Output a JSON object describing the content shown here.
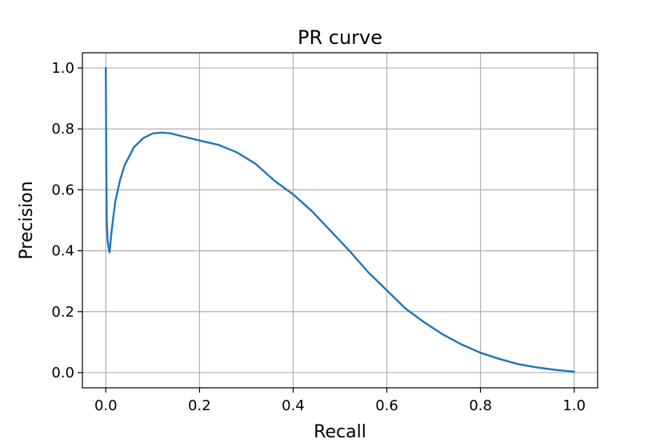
{
  "chart_data": {
    "type": "line",
    "title": "PR curve",
    "xlabel": "Recall",
    "ylabel": "Precision",
    "xlim": [
      -0.05,
      1.05
    ],
    "ylim": [
      -0.05,
      1.05
    ],
    "grid": true,
    "xticks": [
      0.0,
      0.2,
      0.4,
      0.6,
      0.8,
      1.0
    ],
    "yticks": [
      0.0,
      0.2,
      0.4,
      0.6,
      0.8,
      1.0
    ],
    "xtick_labels": [
      "0.0",
      "0.2",
      "0.4",
      "0.6",
      "0.8",
      "1.0"
    ],
    "ytick_labels": [
      "0.0",
      "0.2",
      "0.4",
      "0.6",
      "0.8",
      "1.0"
    ],
    "line_color": "#1f77b4",
    "series": [
      {
        "x": [
          0.0,
          0.001,
          0.002,
          0.004,
          0.006,
          0.008,
          0.012,
          0.02,
          0.03,
          0.04,
          0.06,
          0.08,
          0.1,
          0.12,
          0.14,
          0.16,
          0.2,
          0.24,
          0.28,
          0.32,
          0.36,
          0.4,
          0.44,
          0.48,
          0.52,
          0.56,
          0.6,
          0.64,
          0.68,
          0.72,
          0.76,
          0.8,
          0.84,
          0.88,
          0.92,
          0.96,
          1.0
        ],
        "y": [
          1.0,
          0.7,
          0.5,
          0.43,
          0.41,
          0.395,
          0.46,
          0.56,
          0.63,
          0.68,
          0.74,
          0.77,
          0.785,
          0.788,
          0.785,
          0.777,
          0.762,
          0.748,
          0.723,
          0.685,
          0.63,
          0.585,
          0.53,
          0.465,
          0.4,
          0.33,
          0.27,
          0.21,
          0.165,
          0.125,
          0.092,
          0.065,
          0.045,
          0.028,
          0.017,
          0.009,
          0.003
        ]
      }
    ]
  }
}
